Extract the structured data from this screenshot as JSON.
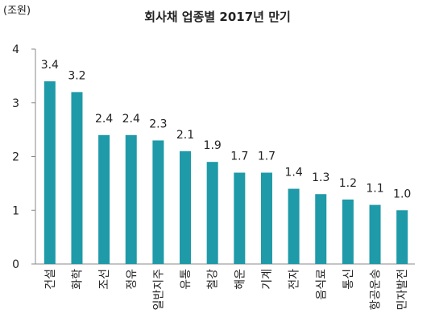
{
  "chart_data": {
    "type": "bar",
    "title": "회사채 업종별 2017년 만기",
    "unit_label": "(조원)",
    "xlabel": "",
    "ylabel": "",
    "categories": [
      "건설",
      "화학",
      "조선",
      "정유",
      "일반지주",
      "유통",
      "철강",
      "해운",
      "기계",
      "전자",
      "음식료",
      "통신",
      "항공운송",
      "민자발전"
    ],
    "values": [
      3.4,
      3.2,
      2.4,
      2.4,
      2.3,
      2.1,
      1.9,
      1.7,
      1.7,
      1.4,
      1.3,
      1.2,
      1.1,
      1.0
    ],
    "data_labels": [
      "3.4",
      "3.2",
      "2.4",
      "2.4",
      "2.3",
      "2.1",
      "1.9",
      "1.7",
      "1.7",
      "1.4",
      "1.3",
      "1.2",
      "1.1",
      "1.0"
    ],
    "ylim": [
      0,
      4
    ],
    "yticks": [
      "0",
      "1",
      "2",
      "3",
      "4"
    ],
    "grid": false,
    "legend": "none",
    "bar_color": "#1e9aa8",
    "axis_color": "#888888"
  }
}
